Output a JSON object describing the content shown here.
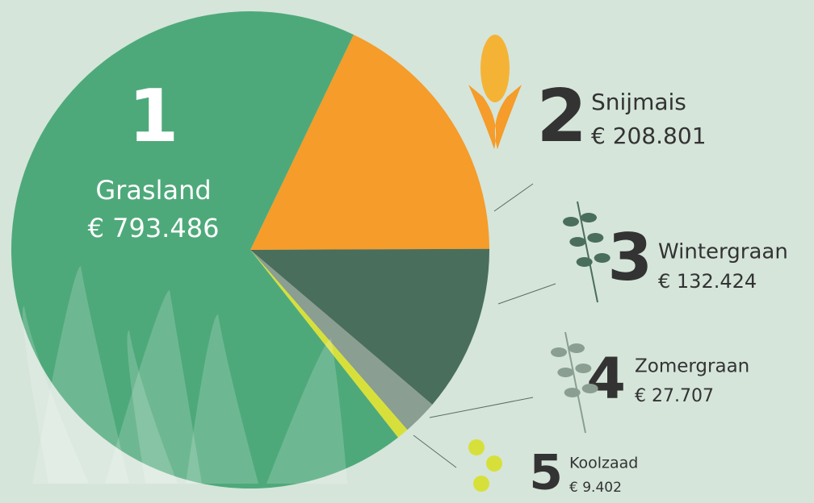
{
  "chart_data": {
    "type": "pie",
    "categories": [
      "Grasland",
      "Snijmais",
      "Wintergraan",
      "Zomergraan",
      "Koolzaad"
    ],
    "ranks": [
      1,
      2,
      3,
      4,
      5
    ],
    "values": [
      793486,
      208801,
      132424,
      27707,
      9402
    ],
    "value_labels": [
      "€ 793.486",
      "€ 208.801",
      "€ 132.424",
      "€ 27.707",
      "€ 9.402"
    ],
    "colors": [
      "#4ea97a",
      "#f59c2a",
      "#4a6e5c",
      "#8a9e92",
      "#d7e03a"
    ]
  }
}
